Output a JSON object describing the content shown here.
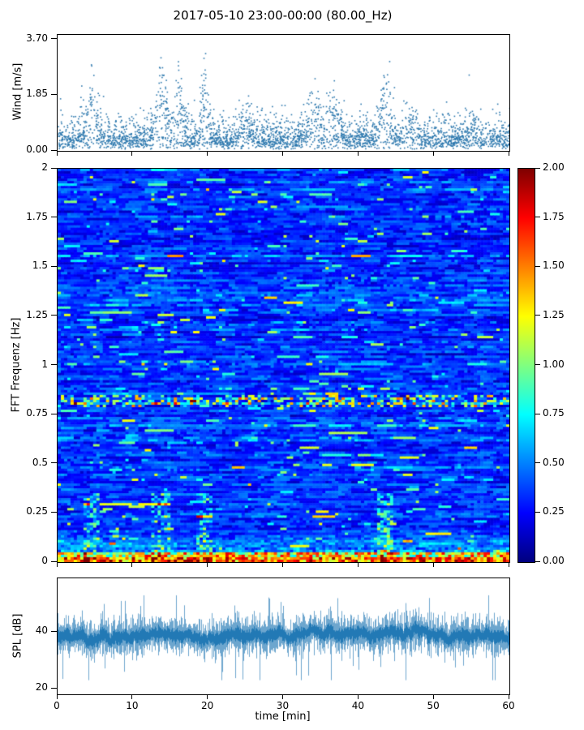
{
  "figure": {
    "title": "2017-05-10 23:00-00:00 (80.00_Hz)"
  },
  "chart_data": [
    {
      "type": "scatter",
      "name": "wind-speed",
      "ylabel": "Wind [m/s]",
      "xlim": [
        0,
        60
      ],
      "ylim": [
        0,
        3.85
      ],
      "yticks": {
        "values": [
          0,
          1.85,
          3.7
        ],
        "labels": [
          "0.00",
          "1.85",
          "3.70"
        ]
      },
      "point_color": "#2b77ad",
      "n_points": 2600,
      "bulk_range_ms": [
        0.1,
        1.5
      ],
      "max_ms": 3.7,
      "gusts": [
        [
          4.5,
          1.0,
          1.6
        ],
        [
          13.7,
          0.9,
          2.2
        ],
        [
          16,
          0.8,
          1.8
        ],
        [
          19.5,
          0.7,
          2.0
        ],
        [
          25,
          0.8,
          0.8
        ],
        [
          34,
          1.2,
          1.2
        ],
        [
          36.5,
          1.0,
          1.3
        ],
        [
          43.5,
          0.9,
          1.9
        ],
        [
          47,
          0.8,
          0.9
        ],
        [
          55,
          0.6,
          0.7
        ]
      ],
      "summary": "Dense wind-speed scatter vs time; bulk of points 0.1-1.5 m/s with gust clusters near t = 4.5, 13.7, 16, 19.5, 34, 36.5, 43.5 min reaching up to 3.7 m/s"
    },
    {
      "type": "heatmap",
      "name": "fft-spectrogram",
      "ylabel": "FFT Frequenz [Hz]",
      "xlim": [
        0,
        60
      ],
      "ylim": [
        0,
        2
      ],
      "yticks": {
        "values": [
          0,
          0.25,
          0.5,
          0.75,
          1,
          1.25,
          1.5,
          1.75,
          2
        ],
        "labels": [
          "0",
          "0.25",
          "0.5",
          "0.75",
          "1",
          "1.25",
          "1.5",
          "1.75",
          "2"
        ]
      },
      "colormap": "jet",
      "clim": [
        0,
        2
      ],
      "colorbar": {
        "values": [
          0,
          0.25,
          0.5,
          0.75,
          1,
          1.25,
          1.5,
          1.75,
          2
        ],
        "labels": [
          "0.00",
          "0.25",
          "0.50",
          "0.75",
          "1.00",
          "1.25",
          "1.50",
          "1.75",
          "2.00"
        ]
      },
      "gust_times_min": [
        4.5,
        13.7,
        19.5,
        43.5
      ],
      "features": [
        "background power ~0.1-0.6 (dark/medium blue) with short horizontal cyan streaks at all frequencies",
        "enhanced band near 0.82 Hz with intermittent green-yellow streaks",
        "strong power (1-2, yellow-orange-red) below ~0.1 Hz along the bottom edge",
        "extra low-frequency energy bursts near gust times"
      ]
    },
    {
      "type": "line",
      "name": "spl",
      "ylabel": "SPL [dB]",
      "xlabel": "time [min]",
      "xlim": [
        0,
        60
      ],
      "ylim": [
        18,
        59
      ],
      "yticks": {
        "values": [
          20,
          40
        ],
        "labels": [
          "20",
          "40"
        ]
      },
      "xticks": {
        "values": [
          0,
          10,
          20,
          30,
          40,
          50,
          60
        ],
        "labels": [
          "0",
          "10",
          "20",
          "30",
          "40",
          "50",
          "60"
        ]
      },
      "line_color": "#1f77b4",
      "mean_db": 39,
      "typical_spread_db": 6,
      "min_db": 25,
      "max_db": 52,
      "summary": "Dense noisy SPL trace fluctuating around ~39 dB, band roughly 30-48 dB with occasional dips to ~25 dB and peaks to ~52 dB"
    }
  ]
}
